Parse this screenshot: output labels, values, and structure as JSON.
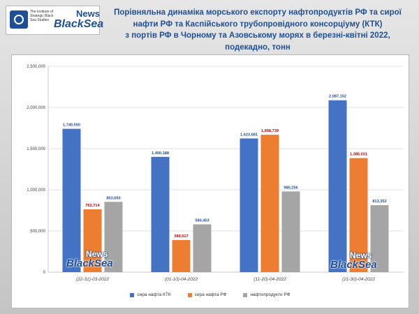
{
  "logo": {
    "institute": "The Institute of Strategic Black Sea Studies",
    "news": "News",
    "brand": "BlackSea"
  },
  "title": {
    "lines": [
      "Порівняльна динаміка морського експорту нафтопродуктів РФ та сирої",
      "нафти РФ та Каспійського трубопровідного консорціуму (КТК)",
      "з портів РФ в Чорному та Азовському морях в березні-квітні 2022,",
      "подекадно, тонн"
    ]
  },
  "watermark": {
    "news": "News",
    "brand": "BlackSea"
  },
  "chart_data": {
    "type": "bar",
    "title": "",
    "xlabel": "",
    "ylabel": "",
    "categories": [
      "(22-31)-03-2022",
      "(01-10)-04-2022",
      "(11-20)-04-2022",
      "(21-30)-04-2022"
    ],
    "series": [
      {
        "name": "сира нафта КТК",
        "color": "#4472c4",
        "labelColor": "#1f4f95",
        "values": [
          1740550,
          1400188,
          1623681,
          2087152
        ],
        "labels": [
          "1,740,550",
          "1,400,188",
          "1,623,681",
          "2,087,152"
        ]
      },
      {
        "name": "сира нафта РФ",
        "color": "#ed7d31",
        "labelColor": "#c00000",
        "values": [
          762714,
          389517,
          1668739,
          1385031
        ],
        "labels": [
          "762,714",
          "389,517",
          "1,668,739",
          "1,385,031"
        ]
      },
      {
        "name": "нафтопродукти РФ",
        "color": "#a5a5a5",
        "labelColor": "#1f4f95",
        "values": [
          853650,
          580453,
          980256,
          813352
        ],
        "labels": [
          "853,650",
          "580,453",
          "980,256",
          "813,352"
        ]
      }
    ],
    "yticks": [
      0,
      500000,
      1000000,
      1500000,
      2000000,
      2500000
    ],
    "ytick_labels": [
      "0",
      "500,000",
      "1,000,000",
      "1,500,000",
      "2,000,000",
      "2,500,000"
    ],
    "ylim": [
      0,
      2500000
    ],
    "grid": true,
    "legend": "bottom"
  }
}
